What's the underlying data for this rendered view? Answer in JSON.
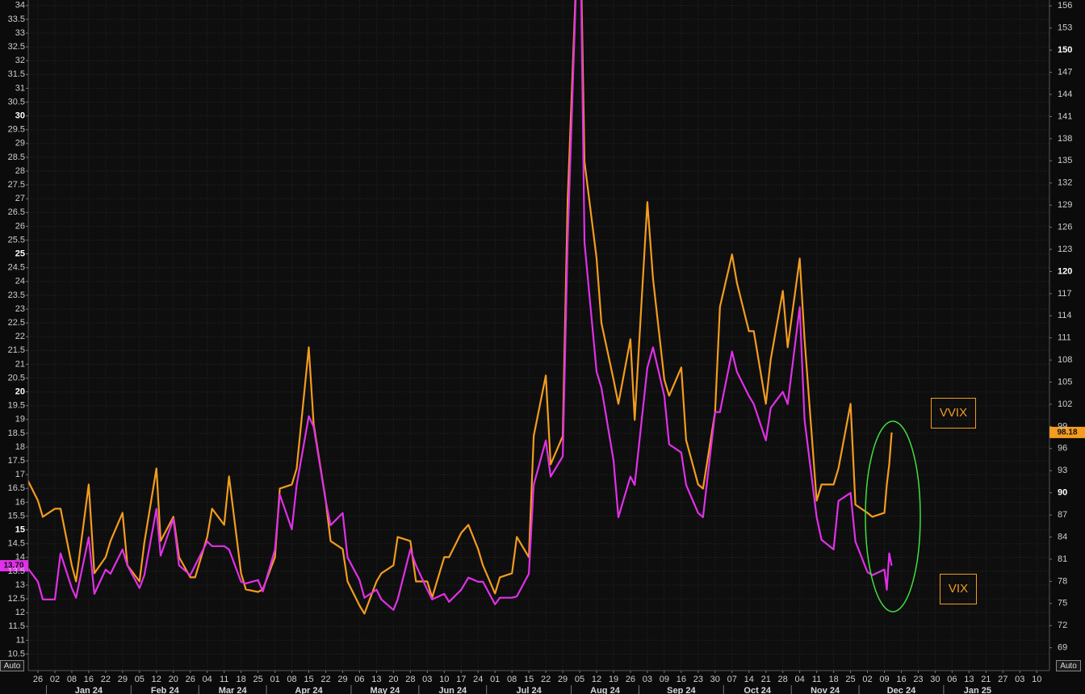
{
  "chart_data": {
    "type": "line",
    "x": [
      "2023-12-21",
      "2023-12-26",
      "2023-12-28",
      "2024-01-02",
      "2024-01-04",
      "2024-01-08",
      "2024-01-10",
      "2024-01-16",
      "2024-01-18",
      "2024-01-22",
      "2024-01-24",
      "2024-01-29",
      "2024-01-31",
      "2024-02-05",
      "2024-02-07",
      "2024-02-12",
      "2024-02-14",
      "2024-02-20",
      "2024-02-22",
      "2024-02-26",
      "2024-02-28",
      "2024-03-04",
      "2024-03-06",
      "2024-03-11",
      "2024-03-13",
      "2024-03-18",
      "2024-03-20",
      "2024-03-25",
      "2024-03-27",
      "2024-04-01",
      "2024-04-03",
      "2024-04-08",
      "2024-04-10",
      "2024-04-15",
      "2024-04-17",
      "2024-04-22",
      "2024-04-24",
      "2024-04-29",
      "2024-05-01",
      "2024-05-06",
      "2024-05-08",
      "2024-05-13",
      "2024-05-15",
      "2024-05-20",
      "2024-05-22",
      "2024-05-28",
      "2024-05-30",
      "2024-06-03",
      "2024-06-05",
      "2024-06-10",
      "2024-06-12",
      "2024-06-17",
      "2024-06-20",
      "2024-06-24",
      "2024-06-26",
      "2024-07-01",
      "2024-07-03",
      "2024-07-08",
      "2024-07-10",
      "2024-07-15",
      "2024-07-17",
      "2024-07-22",
      "2024-07-24",
      "2024-07-29",
      "2024-07-31",
      "2024-08-05",
      "2024-08-07",
      "2024-08-12",
      "2024-08-14",
      "2024-08-19",
      "2024-08-21",
      "2024-08-26",
      "2024-08-28",
      "2024-09-03",
      "2024-09-05",
      "2024-09-09",
      "2024-09-11",
      "2024-09-16",
      "2024-09-18",
      "2024-09-23",
      "2024-09-25",
      "2024-09-30",
      "2024-10-02",
      "2024-10-07",
      "2024-10-09",
      "2024-10-14",
      "2024-10-16",
      "2024-10-21",
      "2024-10-23",
      "2024-10-28",
      "2024-10-30",
      "2024-11-04",
      "2024-11-06",
      "2024-11-11",
      "2024-11-13",
      "2024-11-18",
      "2024-11-20",
      "2024-11-25",
      "2024-11-27",
      "2024-12-02",
      "2024-12-04",
      "2024-12-09",
      "2024-12-10",
      "2024-12-11",
      "2024-12-12"
    ],
    "series": [
      {
        "name": "VVIX",
        "color": "#f39c1e",
        "axis": "y2",
        "last_value_label": "98.18",
        "values": [
          92.22,
          88.94,
          86.75,
          87.84,
          87.84,
          80.18,
          77.99,
          91.12,
          79.09,
          81.28,
          83.47,
          87.29,
          80.18,
          77.99,
          83.25,
          93.31,
          83.47,
          86.75,
          81.28,
          78.54,
          78.54,
          84.01,
          87.84,
          85.65,
          92.22,
          79.09,
          76.9,
          76.57,
          76.9,
          81.28,
          90.58,
          91.12,
          93.31,
          109.72,
          99.33,
          88.94,
          83.47,
          82.37,
          77.99,
          74.71,
          73.62,
          77.99,
          79.09,
          80.18,
          84.01,
          83.47,
          77.99,
          77.99,
          75.81,
          81.28,
          81.28,
          84.56,
          85.65,
          82.37,
          80.18,
          76.35,
          78.54,
          79.09,
          84.01,
          81.28,
          97.69,
          105.9,
          93.86,
          97.69,
          129.42,
          172,
          134.89,
          121.76,
          113.01,
          105.35,
          102.06,
          110.82,
          99.88,
          129.42,
          119.02,
          105.35,
          103.16,
          106.99,
          97.14,
          91.12,
          90.58,
          100.97,
          115.19,
          122.31,
          118.48,
          111.91,
          111.91,
          102.06,
          108.08,
          117.38,
          109.72,
          121.76,
          110.82,
          88.94,
          91.12,
          91.12,
          93.31,
          102.06,
          88.39,
          87.29,
          86.75,
          87.29,
          91.12,
          93.86,
          98.18
        ]
      },
      {
        "name": "VIX",
        "color": "#e030e8",
        "last_value_label": "13.70",
        "values": [
          13.71,
          13.12,
          12.48,
          12.48,
          14.15,
          12.89,
          12.54,
          14.73,
          12.68,
          13.56,
          13.41,
          14.29,
          13.71,
          12.89,
          13.36,
          15.76,
          14.06,
          15.4,
          13.71,
          13.36,
          13.71,
          14.58,
          14.41,
          14.41,
          14.29,
          13.12,
          13.06,
          13.18,
          12.77,
          14.29,
          16.28,
          15.02,
          16.63,
          19.12,
          18.74,
          16.05,
          15.17,
          15.61,
          14.0,
          13.18,
          12.54,
          12.83,
          12.48,
          12.1,
          12.48,
          14.29,
          13.71,
          12.83,
          12.48,
          12.68,
          12.39,
          12.83,
          13.27,
          13.12,
          13.12,
          12.3,
          12.54,
          12.54,
          12.59,
          13.41,
          16.63,
          18.24,
          16.93,
          17.66,
          25.42,
          38.57,
          25.42,
          20.73,
          20.15,
          17.51,
          15.46,
          16.93,
          16.63,
          20.88,
          21.61,
          19.85,
          18.1,
          17.8,
          16.63,
          15.61,
          15.46,
          19.27,
          19.27,
          21.46,
          20.73,
          19.85,
          19.56,
          18.24,
          19.42,
          20.0,
          19.56,
          23.07,
          18.98,
          15.46,
          14.64,
          14.29,
          16.05,
          16.34,
          14.58,
          13.47,
          13.36,
          13.56,
          12.83,
          14.15,
          13.7
        ]
      }
    ],
    "ylim": [
      9.9,
      34.2
    ],
    "yticks": [
      10.5,
      11,
      11.5,
      12,
      12.5,
      13,
      13.5,
      14,
      14.5,
      15,
      15.5,
      16,
      16.5,
      17,
      17.5,
      18,
      18.5,
      19,
      19.5,
      20,
      20.5,
      21,
      21.5,
      22,
      22.5,
      23,
      23.5,
      24,
      24.5,
      25,
      25.5,
      26,
      26.5,
      27,
      27.5,
      28,
      28.5,
      29,
      29.5,
      30,
      30.5,
      31,
      31.5,
      32,
      32.5,
      33,
      33.5,
      34
    ],
    "y2lim": [
      65.9,
      156.8
    ],
    "y2ticks": [
      69,
      72,
      75,
      78,
      81,
      84,
      87,
      90,
      93,
      96,
      99,
      102,
      105,
      108,
      111,
      114,
      117,
      120,
      123,
      126,
      129,
      132,
      135,
      138,
      141,
      144,
      147,
      150,
      153,
      156
    ],
    "xticks": [
      {
        "value": "2023-12-26",
        "label": "26"
      },
      {
        "value": "2024-01-02",
        "label": "02"
      },
      {
        "value": "2024-01-08",
        "label": "08"
      },
      {
        "value": "2024-01-16",
        "label": "16"
      },
      {
        "value": "2024-01-22",
        "label": "22"
      },
      {
        "value": "2024-01-29",
        "label": "29"
      },
      {
        "value": "2024-02-05",
        "label": "05"
      },
      {
        "value": "2024-02-12",
        "label": "12"
      },
      {
        "value": "2024-02-20",
        "label": "20"
      },
      {
        "value": "2024-02-26",
        "label": "26"
      },
      {
        "value": "2024-03-04",
        "label": "04"
      },
      {
        "value": "2024-03-11",
        "label": "11"
      },
      {
        "value": "2024-03-18",
        "label": "18"
      },
      {
        "value": "2024-03-25",
        "label": "25"
      },
      {
        "value": "2024-04-01",
        "label": "01"
      },
      {
        "value": "2024-04-08",
        "label": "08"
      },
      {
        "value": "2024-04-15",
        "label": "15"
      },
      {
        "value": "2024-04-22",
        "label": "22"
      },
      {
        "value": "2024-04-29",
        "label": "29"
      },
      {
        "value": "2024-05-06",
        "label": "06"
      },
      {
        "value": "2024-05-13",
        "label": "13"
      },
      {
        "value": "2024-05-20",
        "label": "20"
      },
      {
        "value": "2024-05-28",
        "label": "28"
      },
      {
        "value": "2024-06-03",
        "label": "03"
      },
      {
        "value": "2024-06-10",
        "label": "10"
      },
      {
        "value": "2024-06-17",
        "label": "17"
      },
      {
        "value": "2024-06-24",
        "label": "24"
      },
      {
        "value": "2024-07-01",
        "label": "01"
      },
      {
        "value": "2024-07-08",
        "label": "08"
      },
      {
        "value": "2024-07-15",
        "label": "15"
      },
      {
        "value": "2024-07-22",
        "label": "22"
      },
      {
        "value": "2024-07-29",
        "label": "29"
      },
      {
        "value": "2024-08-05",
        "label": "05"
      },
      {
        "value": "2024-08-12",
        "label": "12"
      },
      {
        "value": "2024-08-19",
        "label": "19"
      },
      {
        "value": "2024-08-26",
        "label": "26"
      },
      {
        "value": "2024-09-03",
        "label": "03"
      },
      {
        "value": "2024-09-09",
        "label": "09"
      },
      {
        "value": "2024-09-16",
        "label": "16"
      },
      {
        "value": "2024-09-23",
        "label": "23"
      },
      {
        "value": "2024-09-30",
        "label": "30"
      },
      {
        "value": "2024-10-07",
        "label": "07"
      },
      {
        "value": "2024-10-14",
        "label": "14"
      },
      {
        "value": "2024-10-21",
        "label": "21"
      },
      {
        "value": "2024-10-28",
        "label": "28"
      },
      {
        "value": "2024-11-04",
        "label": "04"
      },
      {
        "value": "2024-11-11",
        "label": "11"
      },
      {
        "value": "2024-11-18",
        "label": "18"
      },
      {
        "value": "2024-11-25",
        "label": "25"
      },
      {
        "value": "2024-12-02",
        "label": "02"
      },
      {
        "value": "2024-12-09",
        "label": "09"
      },
      {
        "value": "2024-12-16",
        "label": "16"
      },
      {
        "value": "2024-12-23",
        "label": "23"
      },
      {
        "value": "2024-12-30",
        "label": "30"
      },
      {
        "value": "2025-01-06",
        "label": "06"
      },
      {
        "value": "2025-01-13",
        "label": "13"
      },
      {
        "value": "2025-01-21",
        "label": "21"
      },
      {
        "value": "2025-01-27",
        "label": "27"
      },
      {
        "value": "2025-02-03",
        "label": "03"
      },
      {
        "value": "2025-02-10",
        "label": "10"
      }
    ],
    "months": [
      {
        "value": "2024-01",
        "label": "Jan 24"
      },
      {
        "value": "2024-02",
        "label": "Feb 24"
      },
      {
        "value": "2024-03",
        "label": "Mar 24"
      },
      {
        "value": "2024-04",
        "label": "Apr 24"
      },
      {
        "value": "2024-05",
        "label": "May 24"
      },
      {
        "value": "2024-06",
        "label": "Jun 24"
      },
      {
        "value": "2024-07",
        "label": "Jul 24"
      },
      {
        "value": "2024-08",
        "label": "Aug 24"
      },
      {
        "value": "2024-09",
        "label": "Sep 24"
      },
      {
        "value": "2024-10",
        "label": "Oct 24"
      },
      {
        "value": "2024-11",
        "label": "Nov 24"
      },
      {
        "value": "2024-12",
        "label": "Dec 24"
      },
      {
        "value": "2025-01",
        "label": "Jan 25"
      }
    ],
    "grid": true,
    "y_axis_mode_label": "Auto",
    "y2_axis_mode_label": "Auto",
    "annotations": [
      {
        "text": "VVIX"
      },
      {
        "text": "VIX"
      }
    ]
  }
}
